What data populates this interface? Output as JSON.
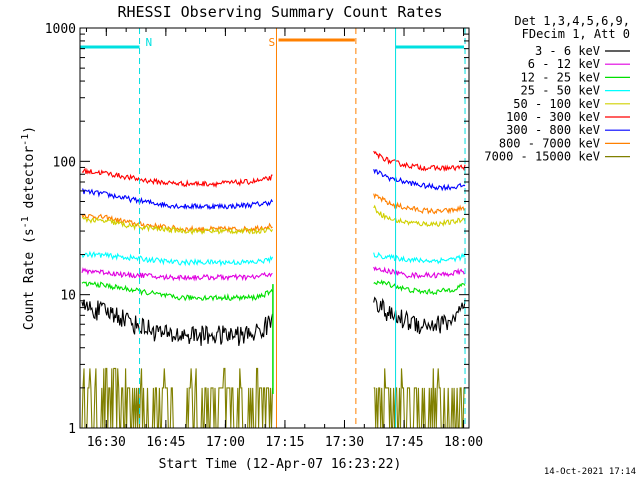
{
  "chart_data": {
    "type": "line",
    "title": "RHESSI Observing Summary Count Rates",
    "xlabel": "Start Time (12-Apr-07 16:23:22)",
    "ylabel": "Count Rate (s",
    "ylabel_sup1": "-1",
    "ylabel_mid": " detector",
    "ylabel_sup2": "-1",
    "ylabel_end": ")",
    "x_unit": "minutes after 16:23:22",
    "xlim": [
      0,
      98
    ],
    "ylim": [
      1,
      1000
    ],
    "yscale": "log",
    "x_ticks": [
      {
        "label": "16:30",
        "value": 6.63
      },
      {
        "label": "16:45",
        "value": 21.63
      },
      {
        "label": "17:00",
        "value": 36.63
      },
      {
        "label": "17:15",
        "value": 51.63
      },
      {
        "label": "17:30",
        "value": 66.63
      },
      {
        "label": "17:45",
        "value": 81.63
      },
      {
        "label": "18:00",
        "value": 96.63
      }
    ],
    "y_ticks": [
      {
        "label": "1",
        "value": 1
      },
      {
        "label": "10",
        "value": 10
      },
      {
        "label": "100",
        "value": 100
      },
      {
        "label": "1000",
        "value": 1000
      }
    ],
    "legend_header": [
      "Det 1,3,4,5,6,9,",
      "FDecim 1, Att 0"
    ],
    "legend_position": "right",
    "series": [
      {
        "name": "3 - 6 keV",
        "color": "#000000",
        "x": [
          0,
          2,
          6,
          10,
          14,
          18,
          22,
          26,
          30,
          34,
          38,
          42,
          46,
          48.5,
          74,
          76,
          78,
          82,
          86,
          90,
          94,
          97
        ],
        "y": [
          8,
          8,
          7.5,
          7,
          6,
          5.5,
          5,
          5,
          5,
          5,
          5,
          5,
          5.5,
          6.5,
          10,
          8,
          7,
          6.5,
          6,
          6,
          6.5,
          8
        ]
      },
      {
        "name": "6 - 12 keV",
        "color": "#e000e0",
        "x": [
          0,
          4,
          8,
          12,
          16,
          20,
          24,
          28,
          32,
          36,
          40,
          44,
          48.5,
          74,
          78,
          82,
          86,
          90,
          94,
          97
        ],
        "y": [
          15,
          15,
          14.5,
          14,
          14,
          13.5,
          13.5,
          13.5,
          13.5,
          13.5,
          13.5,
          13.5,
          14.5,
          15.5,
          15,
          14,
          14,
          14,
          14.5,
          15
        ]
      },
      {
        "name": "12 - 25 keV",
        "color": "#00e000",
        "x": [
          0,
          4,
          8,
          12,
          16,
          20,
          24,
          28,
          32,
          36,
          40,
          44,
          48.5,
          74,
          78,
          82,
          86,
          90,
          94,
          97
        ],
        "y": [
          12,
          12,
          11.5,
          11,
          10.5,
          10,
          9.5,
          9.5,
          9.5,
          9.5,
          9.5,
          9.5,
          10.5,
          12.5,
          12,
          11,
          10.5,
          10.5,
          11,
          12
        ]
      },
      {
        "name": "25 - 50 keV",
        "color": "#00ffff",
        "x": [
          0,
          4,
          8,
          12,
          16,
          20,
          24,
          28,
          32,
          36,
          40,
          44,
          48.5,
          74,
          78,
          82,
          86,
          90,
          94,
          97
        ],
        "y": [
          20,
          20,
          19.5,
          19,
          18.5,
          18,
          17.5,
          17.5,
          17.5,
          17.5,
          17.5,
          17.5,
          18.5,
          20,
          19,
          18.5,
          18,
          18,
          18.5,
          19.5
        ]
      },
      {
        "name": "50 - 100 keV",
        "color": "#d0d000",
        "x": [
          0,
          4,
          8,
          12,
          16,
          20,
          24,
          28,
          32,
          36,
          40,
          44,
          48.5,
          74,
          76,
          78,
          82,
          86,
          90,
          94,
          97
        ],
        "y": [
          37,
          36,
          35,
          33,
          32,
          31,
          30.5,
          30,
          30,
          30,
          30,
          30,
          31,
          45,
          40,
          37,
          35,
          34,
          34,
          35,
          37
        ]
      },
      {
        "name": "100 - 300 keV",
        "color": "#ff0000",
        "x": [
          0,
          2,
          6,
          10,
          14,
          18,
          22,
          26,
          30,
          34,
          38,
          42,
          46,
          48.5,
          74,
          76,
          78,
          82,
          86,
          90,
          94,
          97
        ],
        "y": [
          85,
          84,
          82,
          78,
          74,
          71,
          69,
          68,
          68,
          68,
          69,
          70,
          72,
          76,
          115,
          108,
          100,
          94,
          90,
          89,
          89,
          91
        ]
      },
      {
        "name": "300 - 800 keV",
        "color": "#0000ff",
        "x": [
          0,
          2,
          6,
          10,
          14,
          18,
          22,
          26,
          30,
          34,
          38,
          42,
          46,
          48.5,
          74,
          76,
          78,
          82,
          86,
          90,
          94,
          97
        ],
        "y": [
          60,
          59,
          57,
          54,
          51,
          49,
          47,
          46,
          46,
          46,
          46,
          47,
          48,
          50,
          85,
          80,
          75,
          70,
          66,
          64,
          64,
          66
        ]
      },
      {
        "name": "800 - 7000 keV",
        "color": "#ff8000",
        "x": [
          0,
          2,
          6,
          10,
          14,
          18,
          22,
          26,
          30,
          34,
          38,
          42,
          46,
          48.5,
          74,
          76,
          78,
          82,
          86,
          90,
          94,
          97
        ],
        "y": [
          40,
          39,
          38,
          36,
          34,
          33,
          32,
          31,
          31,
          31,
          31,
          31,
          32,
          33,
          55,
          52,
          48,
          45,
          43,
          42,
          43,
          45
        ]
      },
      {
        "name": "7000 - 15000 keV",
        "color": "#808000",
        "x": [
          0,
          24,
          26,
          48.5,
          74,
          97
        ],
        "y": [
          2,
          2,
          2,
          2,
          2,
          2
        ]
      }
    ],
    "flags": [
      {
        "label": "N",
        "color": "#00e0e0",
        "start": 0,
        "end": 15
      },
      {
        "label": "S",
        "color": "#ff8000",
        "start": 49.5,
        "end": 69.5
      },
      {
        "label": "",
        "color": "#00e0e0",
        "start": 79.5,
        "end": 97
      }
    ],
    "footer": "14-Oct-2021 17:14"
  }
}
